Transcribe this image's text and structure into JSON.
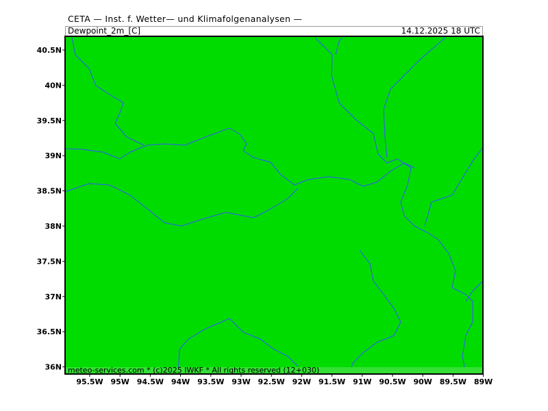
{
  "header": {
    "title": "CETA — Inst. f. Wetter— und Klimafolgenanalysen —",
    "variable": "Dewpoint_2m_[C]",
    "valid_time": "14.12.2025  18 UTC"
  },
  "map": {
    "field_color": "#00dc00",
    "river_color": "#3355ff",
    "lat_labels": [
      "40.5N",
      "40N",
      "39.5N",
      "39N",
      "38.5N",
      "38N",
      "37.5N",
      "37N",
      "36.5N",
      "36N"
    ],
    "lon_labels": [
      "95.5W",
      "95W",
      "94.5W",
      "94W",
      "93.5W",
      "93W",
      "92.5W",
      "92W",
      "91.5W",
      "91W",
      "90.5W",
      "90W",
      "89.5W",
      "89W"
    ]
  },
  "footer": {
    "copyright": "meteo-services.com * (c)2025 IWKF * All rights reserved (12+030)"
  }
}
